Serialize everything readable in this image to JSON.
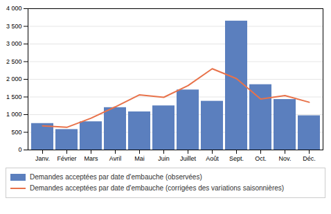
{
  "chart_data": {
    "type": "bar",
    "categories": [
      "Janv.",
      "Février",
      "Mars",
      "Avril",
      "Mai",
      "Juin",
      "Juillet",
      "Août",
      "Sept.",
      "Oct.",
      "Nov.",
      "Déc."
    ],
    "series": [
      {
        "name": "Demandes acceptées par date d'embauche (observées)",
        "type": "bar",
        "color": "#5b7fbe",
        "values": [
          750,
          580,
          800,
          1200,
          1080,
          1250,
          1700,
          1380,
          3650,
          1850,
          1430,
          970
        ]
      },
      {
        "name": "Demandes acceptées par date d'embauche (corrigées des variations saisonnières)",
        "type": "line",
        "color": "#e8724a",
        "values": [
          680,
          640,
          900,
          1220,
          1560,
          1490,
          1820,
          2300,
          2020,
          1440,
          1540,
          1350
        ]
      }
    ],
    "ylim": [
      0,
      4000
    ],
    "yticks": [
      0,
      500,
      {
        "value": 1000,
        "label": "1 000"
      },
      {
        "value": 1500,
        "label": "1 500"
      },
      {
        "value": 2000,
        "label": "2 000"
      },
      {
        "value": 2500,
        "label": "2 500"
      },
      {
        "value": 3000,
        "label": "3 000"
      },
      {
        "value": 3500,
        "label": "3 500"
      },
      {
        "value": 4000,
        "label": "4 000"
      }
    ],
    "grid": true,
    "legend": "bottom"
  }
}
